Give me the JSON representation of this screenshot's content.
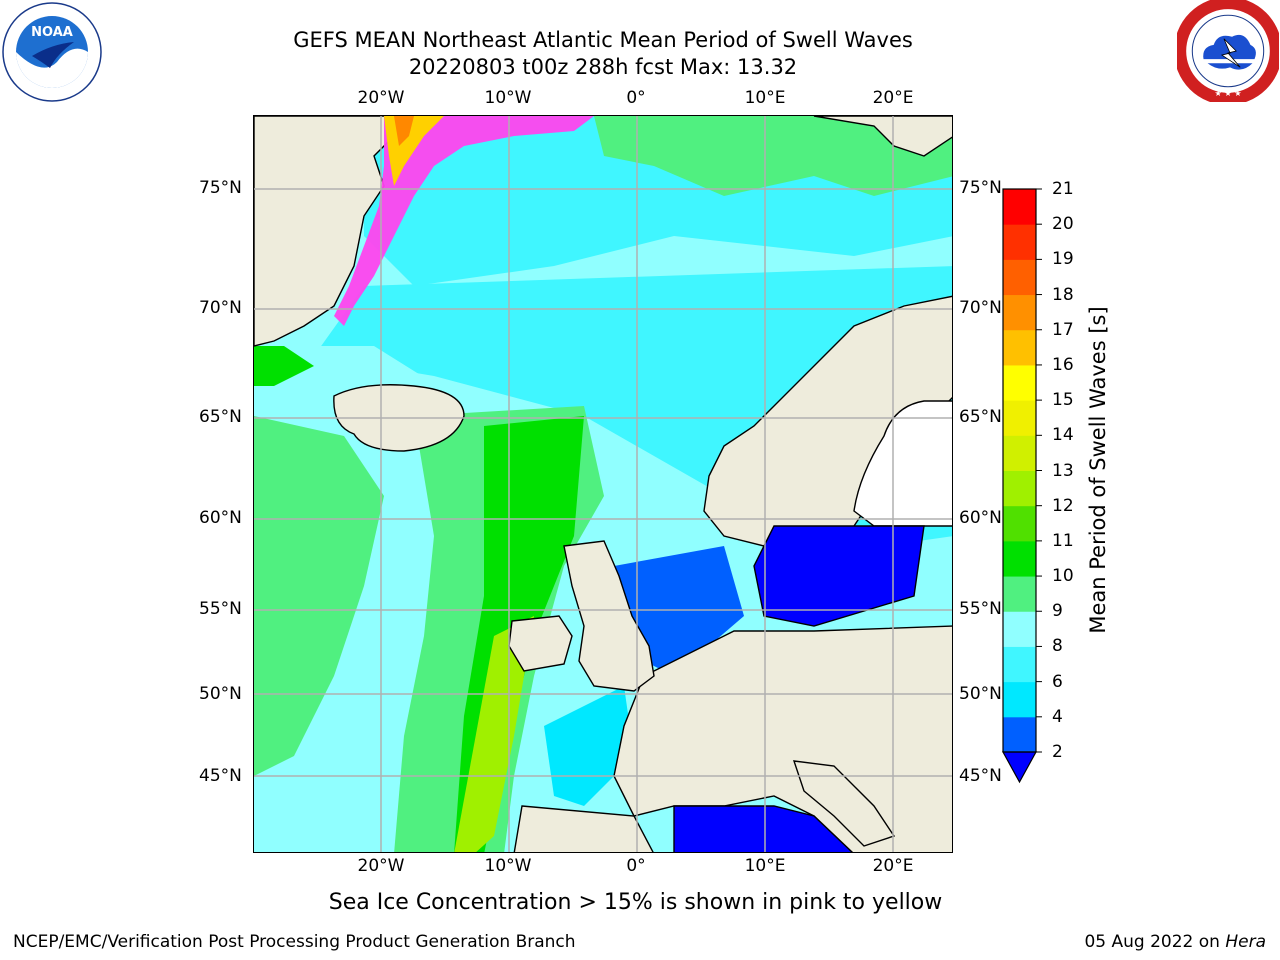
{
  "header": {
    "title_line1": "GEFS MEAN Northeast Atlantic Mean Period of Swell Waves",
    "title_line2": "20220803 t00z 288h fcst   Max: 13.32"
  },
  "logos": {
    "left": {
      "name": "noaa",
      "text": "NOAA",
      "ring_text": "NATIONAL OCEANIC AND ATMOSPHERIC ADMINISTRATION • U.S. DEPARTMENT OF COMMERCE"
    },
    "right": {
      "name": "national-weather-service",
      "ring_text": "NATIONAL WEATHER SERVICE"
    }
  },
  "map": {
    "lon_ticks": [
      "20°W",
      "10°W",
      "0°",
      "10°E",
      "20°E"
    ],
    "lat_ticks": [
      "75°N",
      "70°N",
      "65°N",
      "60°N",
      "55°N",
      "50°N",
      "45°N"
    ],
    "land_color": "#eeecdc",
    "gridline_color": "#b0b0b0"
  },
  "colorbar": {
    "title": "Mean Period of Swell Waves [s]",
    "labels": [
      "2",
      "4",
      "6",
      "8",
      "9",
      "10",
      "11",
      "12",
      "13",
      "14",
      "15",
      "16",
      "17",
      "18",
      "19",
      "20",
      "21"
    ],
    "colors": [
      "#0060ff",
      "#00e8ff",
      "#40f6ff",
      "#90ffff",
      "#50f080",
      "#00e000",
      "#50e000",
      "#a0f000",
      "#d0f000",
      "#f0f000",
      "#ffff00",
      "#ffc000",
      "#ff9000",
      "#ff6000",
      "#ff3000",
      "#ff0000"
    ],
    "under_color": "#0000ff"
  },
  "note": "Sea Ice Concentration > 15% is shown in pink to yellow",
  "footer": {
    "left": "NCEP/EMC/Verification Post Processing Product Generation Branch",
    "right_date": "05 Aug 2022 on",
    "right_host": "Hera"
  }
}
